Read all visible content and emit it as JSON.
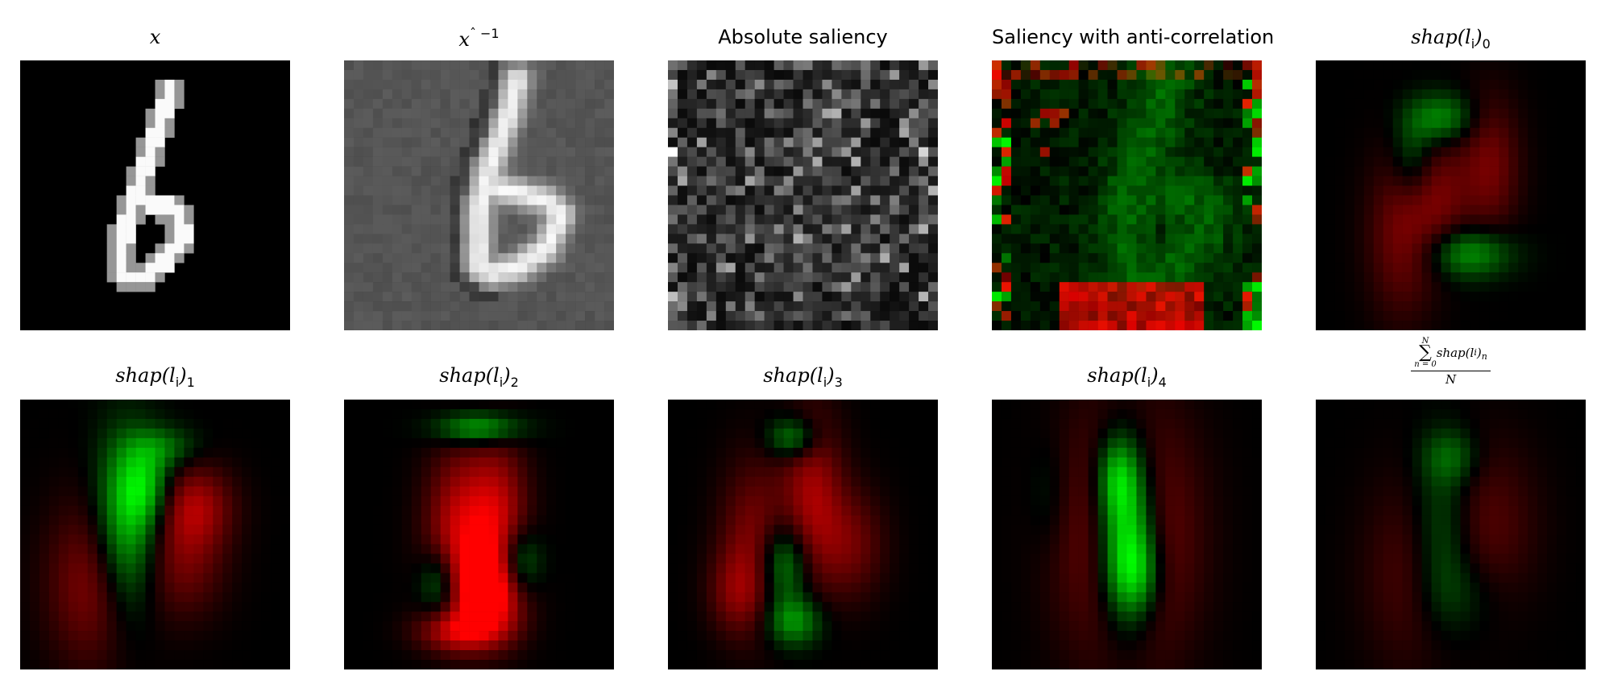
{
  "panels": [
    {
      "title_main": "x",
      "title_sub": "",
      "title_sup": "",
      "kind": "digit"
    },
    {
      "title_main": "x",
      "title_sub": "",
      "title_sup": "ˆ −1",
      "kind": "recon"
    },
    {
      "title_main": "Absolute saliency",
      "title_sub": "",
      "title_sup": "",
      "kind": "noise_gray"
    },
    {
      "title_main": "Saliency with anti-correlation",
      "title_sub": "",
      "title_sup": "",
      "kind": "noise_rg"
    },
    {
      "title_main": "shap(l",
      "title_sub": "i",
      "title_close": ")",
      "title_index": "0",
      "kind": "shap0"
    },
    {
      "title_main": "shap(l",
      "title_sub": "i",
      "title_close": ")",
      "title_index": "1",
      "kind": "shap1"
    },
    {
      "title_main": "shap(l",
      "title_sub": "i",
      "title_close": ")",
      "title_index": "2",
      "kind": "shap2"
    },
    {
      "title_main": "shap(l",
      "title_sub": "i",
      "title_close": ")",
      "title_index": "3",
      "kind": "shap3"
    },
    {
      "title_main": "shap(l",
      "title_sub": "i",
      "title_close": ")",
      "title_index": "4",
      "kind": "shap4"
    },
    {
      "frac_upper": "N",
      "frac_lower": "n = 0",
      "frac_body": "shap(l",
      "frac_sub_i": "i",
      "frac_sub_n": "n",
      "frac_den": "N",
      "kind": "shapmean"
    }
  ],
  "colors": {
    "positive": "#00ff00",
    "negative": "#ff0000",
    "background": "#000000"
  }
}
